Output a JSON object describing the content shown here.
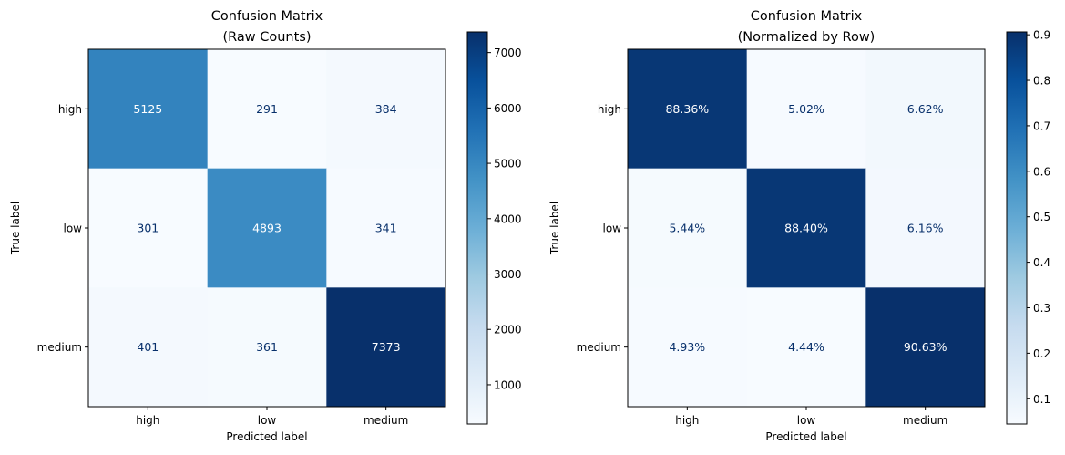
{
  "chart_data": [
    {
      "type": "heatmap",
      "title_line1": "Confusion Matrix",
      "title_line2": "(Raw Counts)",
      "xlabel": "Predicted label",
      "ylabel": "True label",
      "x_categories": [
        "high",
        "low",
        "medium"
      ],
      "y_categories": [
        "high",
        "low",
        "medium"
      ],
      "values": [
        [
          5125,
          291,
          384
        ],
        [
          301,
          4893,
          341
        ],
        [
          401,
          361,
          7373
        ]
      ],
      "cell_labels": [
        [
          "5125",
          "291",
          "384"
        ],
        [
          "301",
          "4893",
          "341"
        ],
        [
          "401",
          "361",
          "7373"
        ]
      ],
      "colormap": "Blues",
      "color_range": [
        291,
        7373
      ],
      "colorbar_ticks": [
        1000,
        2000,
        3000,
        4000,
        5000,
        6000,
        7000
      ],
      "colorbar_tick_labels": [
        "1000",
        "2000",
        "3000",
        "4000",
        "5000",
        "6000",
        "7000"
      ]
    },
    {
      "type": "heatmap",
      "title_line1": "Confusion Matrix",
      "title_line2": "(Normalized by Row)",
      "xlabel": "Predicted label",
      "ylabel": "True label",
      "x_categories": [
        "high",
        "low",
        "medium"
      ],
      "y_categories": [
        "high",
        "low",
        "medium"
      ],
      "values": [
        [
          0.8836,
          0.0502,
          0.0662
        ],
        [
          0.0544,
          0.884,
          0.0616
        ],
        [
          0.0493,
          0.0444,
          0.9063
        ]
      ],
      "cell_labels": [
        [
          "88.36%",
          "5.02%",
          "6.62%"
        ],
        [
          "5.44%",
          "88.40%",
          "6.16%"
        ],
        [
          "4.93%",
          "4.44%",
          "90.63%"
        ]
      ],
      "colormap": "Blues",
      "color_range": [
        0.0444,
        0.9063
      ],
      "colorbar_ticks": [
        0.1,
        0.2,
        0.3,
        0.4,
        0.5,
        0.6,
        0.7,
        0.8,
        0.9
      ],
      "colorbar_tick_labels": [
        "0.1",
        "0.2",
        "0.3",
        "0.4",
        "0.5",
        "0.6",
        "0.7",
        "0.8",
        "0.9"
      ]
    }
  ],
  "colors": {
    "blues_stops": [
      "#f7fbff",
      "#deebf7",
      "#c6dbef",
      "#9ecae1",
      "#6baed6",
      "#4292c6",
      "#2171b5",
      "#08519c",
      "#08306b"
    ],
    "text_light": "#ffffff",
    "text_dark": "#08306b"
  }
}
